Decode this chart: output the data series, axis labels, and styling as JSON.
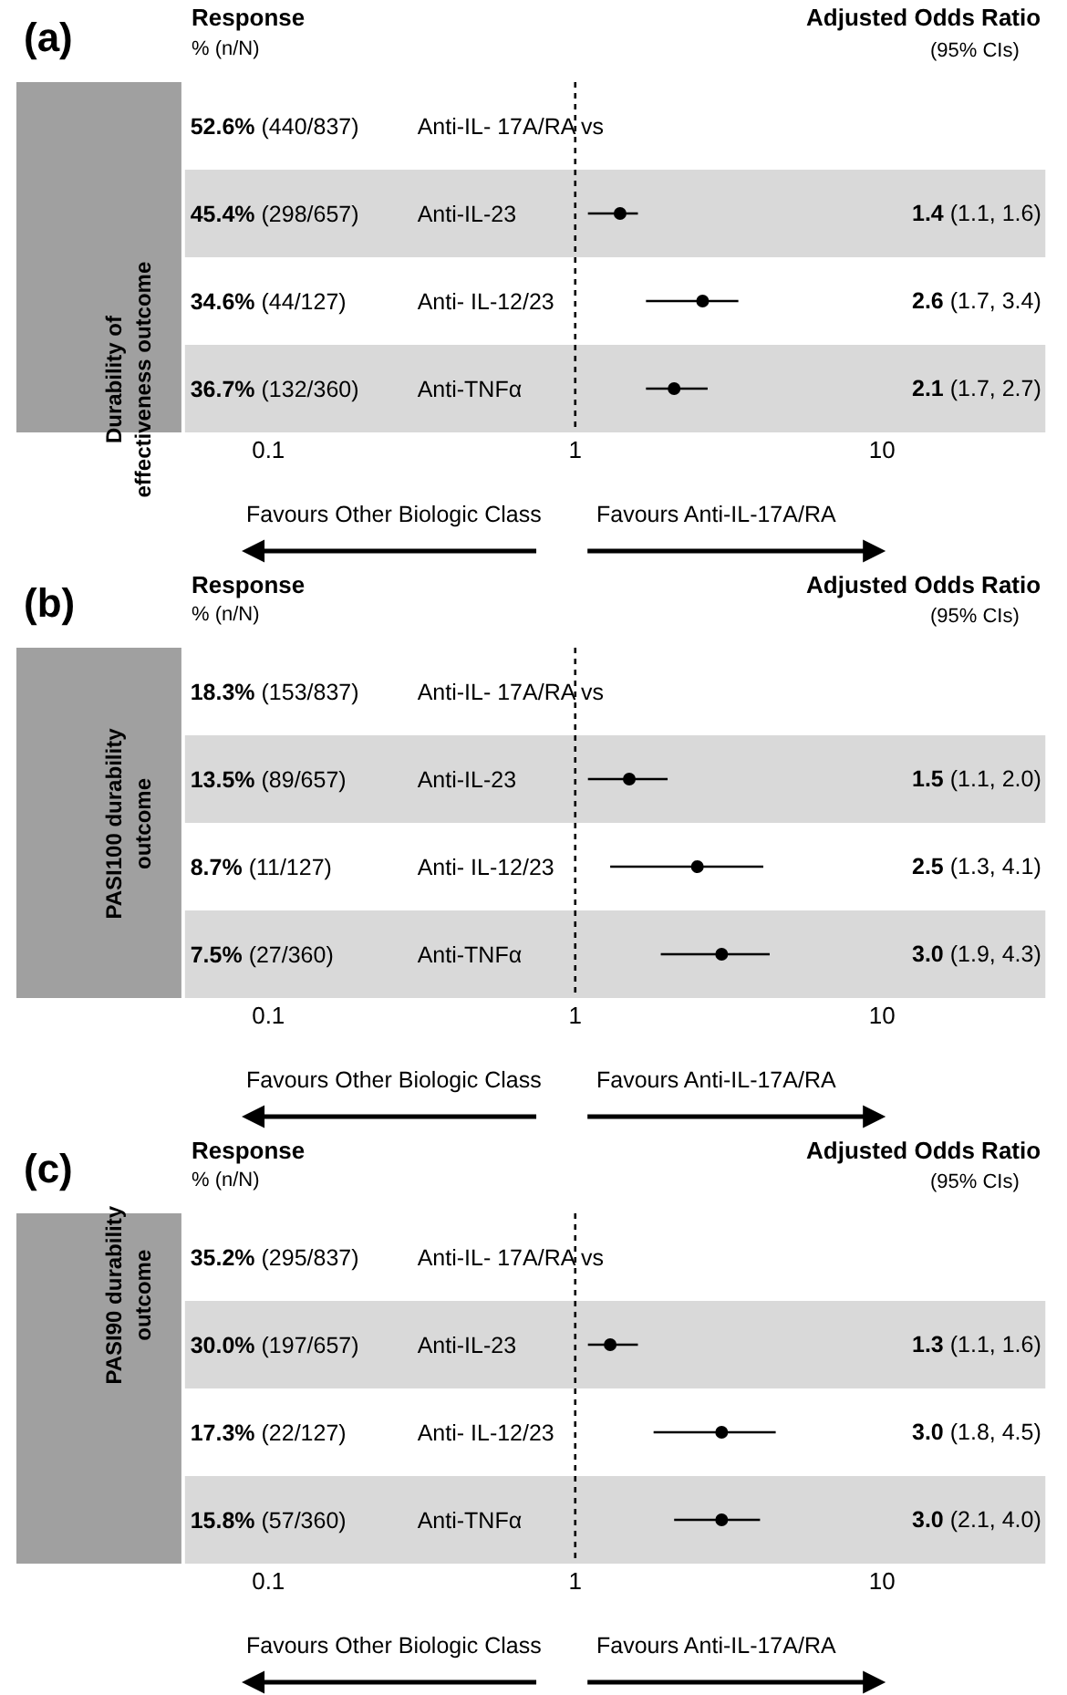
{
  "chart_data": [
    {
      "type": "scatter",
      "title": "(a)",
      "ylabel": "Durability of effectiveness outcome",
      "categories": [
        "Anti-IL- 17A/RA vs",
        "Anti-IL-23",
        "Anti- IL-12/23",
        "Anti-TNFα"
      ],
      "y2_categories": [
        "52.6% (440/837)",
        "45.4% (298/657)",
        "34.6% (44/127)",
        "36.7% (132/360)"
      ],
      "values": [
        null,
        1.4,
        2.6,
        2.1
      ],
      "errors": [
        null,
        [
          1.1,
          1.6
        ],
        [
          1.7,
          3.4
        ],
        [
          1.7,
          2.7
        ]
      ],
      "value_labels": [
        null,
        "1.4 (1.1, 1.6)",
        "2.6 (1.7, 3.4)",
        "2.1 (1.7, 2.7)"
      ],
      "color": "#000000",
      "marker": "circle",
      "orientation": "horizontal",
      "log": "x",
      "xlim": [
        0.1,
        10
      ],
      "xticks": [
        0.1,
        1,
        10
      ],
      "grid": false,
      "legend": false,
      "ref_lines": [
        {
          "axis": "x",
          "value": 1,
          "line_style": "dotted",
          "color": "#000000"
        }
      ],
      "bands": [
        {
          "axis": "y",
          "from": "Anti-IL-23",
          "to": "Anti-IL-23",
          "color": "#d9d9d9"
        },
        {
          "axis": "y",
          "from": "Anti-TNFα",
          "to": "Anti-TNFα",
          "color": "#d9d9d9"
        }
      ],
      "annotations": [
        "Response",
        "% (n/N)",
        "Adjusted Odds Ratio",
        "(95% CIs)",
        "Favours Other Biologic Class",
        "Favours Anti-IL-17A/RA"
      ]
    },
    {
      "type": "scatter",
      "title": "(b)",
      "ylabel": "PASI100 durability outcome",
      "categories": [
        "Anti-IL- 17A/RA vs",
        "Anti-IL-23",
        "Anti- IL-12/23",
        "Anti-TNFα"
      ],
      "y2_categories": [
        "18.3% (153/837)",
        "13.5% (89/657)",
        "8.7% (11/127)",
        "7.5% (27/360)"
      ],
      "values": [
        null,
        1.5,
        2.5,
        3.0
      ],
      "errors": [
        null,
        [
          1.1,
          2.0
        ],
        [
          1.3,
          4.1
        ],
        [
          1.9,
          4.3
        ]
      ],
      "value_labels": [
        null,
        "1.5 (1.1, 2.0)",
        "2.5 (1.3, 4.1)",
        "3.0 (1.9, 4.3)"
      ],
      "color": "#000000",
      "marker": "circle",
      "orientation": "horizontal",
      "log": "x",
      "xlim": [
        0.1,
        10
      ],
      "xticks": [
        0.1,
        1,
        10
      ],
      "grid": false,
      "legend": false,
      "ref_lines": [
        {
          "axis": "x",
          "value": 1,
          "line_style": "dotted",
          "color": "#000000"
        }
      ],
      "bands": [
        {
          "axis": "y",
          "from": "Anti-IL-23",
          "to": "Anti-IL-23",
          "color": "#d9d9d9"
        },
        {
          "axis": "y",
          "from": "Anti-TNFα",
          "to": "Anti-TNFα",
          "color": "#d9d9d9"
        }
      ],
      "annotations": [
        "Response",
        "% (n/N)",
        "Adjusted Odds Ratio",
        "(95% CIs)",
        "Favours Other Biologic Class",
        "Favours Anti-IL-17A/RA"
      ]
    },
    {
      "type": "scatter",
      "title": "(c)",
      "ylabel": "PASI90 durability outcome",
      "categories": [
        "Anti-IL- 17A/RA vs",
        "Anti-IL-23",
        "Anti- IL-12/23",
        "Anti-TNFα"
      ],
      "y2_categories": [
        "35.2% (295/837)",
        "30.0% (197/657)",
        "17.3% (22/127)",
        "15.8% (57/360)"
      ],
      "values": [
        null,
        1.3,
        3.0,
        3.0
      ],
      "errors": [
        null,
        [
          1.1,
          1.6
        ],
        [
          1.8,
          4.5
        ],
        [
          2.1,
          4.0
        ]
      ],
      "value_labels": [
        null,
        "1.3 (1.1, 1.6)",
        "3.0 (1.8, 4.5)",
        "3.0 (2.1, 4.0)"
      ],
      "color": "#000000",
      "marker": "circle",
      "orientation": "horizontal",
      "log": "x",
      "xlim": [
        0.1,
        10
      ],
      "xticks": [
        0.1,
        1,
        10
      ],
      "grid": false,
      "legend": false,
      "ref_lines": [
        {
          "axis": "x",
          "value": 1,
          "line_style": "dotted",
          "color": "#000000"
        }
      ],
      "bands": [
        {
          "axis": "y",
          "from": "Anti-IL-23",
          "to": "Anti-IL-23",
          "color": "#d9d9d9"
        },
        {
          "axis": "y",
          "from": "Anti-TNFα",
          "to": "Anti-TNFα",
          "color": "#d9d9d9"
        }
      ],
      "annotations": [
        "Response",
        "% (n/N)",
        "Adjusted Odds Ratio",
        "(95% CIs)",
        "Favours Other Biologic Class",
        "Favours Anti-IL-17A/RA"
      ]
    }
  ]
}
